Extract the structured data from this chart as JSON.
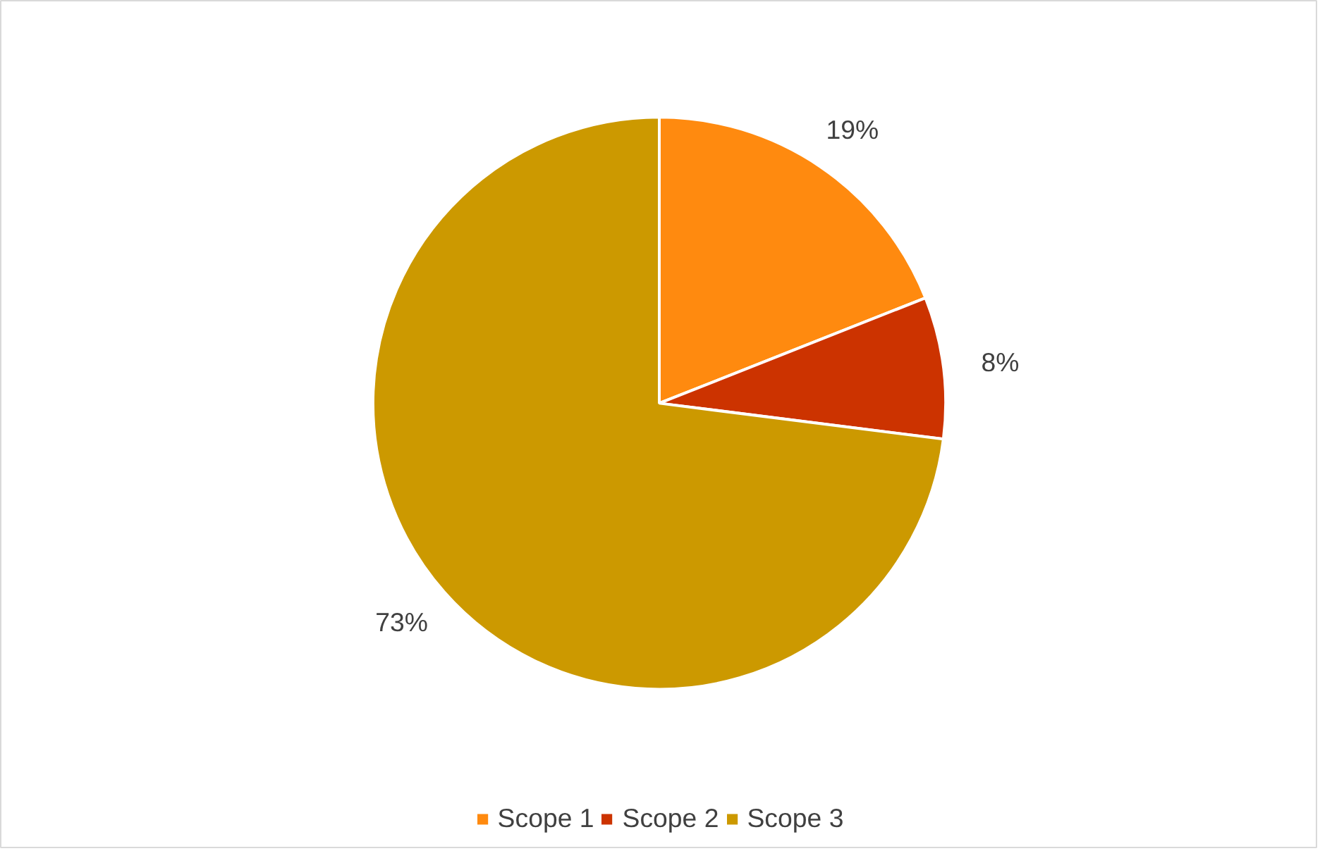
{
  "chart_data": {
    "type": "pie",
    "categories": [
      "Scope 1",
      "Scope 2",
      "Scope 3"
    ],
    "values": [
      19,
      8,
      73
    ],
    "colors": [
      "#ff8a0f",
      "#cc3300",
      "#cc9900"
    ],
    "value_labels": [
      "19%",
      "8%",
      "73%"
    ],
    "legend": "bottom"
  }
}
